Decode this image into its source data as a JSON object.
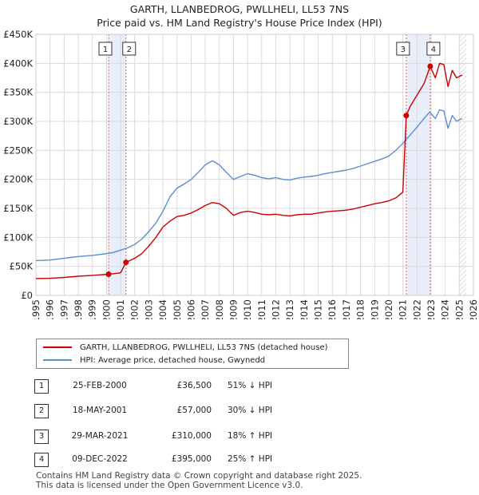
{
  "title_line1": "GARTH, LLANBEDROG, PWLLHELI, LL53 7NS",
  "title_line2": "Price paid vs. HM Land Registry's House Price Index (HPI)",
  "chart_data": {
    "type": "line",
    "title": "GARTH, LLANBEDROG, PWLLHELI, LL53 7NS — Price paid vs. HM Land Registry's House Price Index (HPI)",
    "xlabel": "",
    "ylabel": "",
    "xlim": [
      1995,
      2026
    ],
    "ylim": [
      0,
      450000
    ],
    "x_ticks": [
      "1995",
      "1996",
      "1997",
      "1998",
      "1999",
      "2000",
      "2001",
      "2002",
      "2003",
      "2004",
      "2005",
      "2006",
      "2007",
      "2008",
      "2009",
      "2010",
      "2011",
      "2012",
      "2013",
      "2014",
      "2015",
      "2016",
      "2017",
      "2018",
      "2019",
      "2020",
      "2021",
      "2022",
      "2023",
      "2024",
      "2025",
      "2026"
    ],
    "y_ticks": [
      {
        "value": 0,
        "label": "£0"
      },
      {
        "value": 50000,
        "label": "£50K"
      },
      {
        "value": 100000,
        "label": "£100K"
      },
      {
        "value": 150000,
        "label": "£150K"
      },
      {
        "value": 200000,
        "label": "£200K"
      },
      {
        "value": 250000,
        "label": "£250K"
      },
      {
        "value": 300000,
        "label": "£300K"
      },
      {
        "value": 350000,
        "label": "£350K"
      },
      {
        "value": 400000,
        "label": "£400K"
      },
      {
        "value": 450000,
        "label": "£450K"
      }
    ],
    "grid": true,
    "series": [
      {
        "name": "GARTH, LLANBEDROG, PWLLHELI, LL53 7NS (detached house)",
        "color": "#cc0000",
        "points": [
          [
            1995.0,
            29000
          ],
          [
            1996.0,
            29500
          ],
          [
            1997.0,
            31000
          ],
          [
            1998.0,
            33000
          ],
          [
            1999.0,
            34500
          ],
          [
            2000.15,
            36500
          ],
          [
            2000.5,
            37500
          ],
          [
            2001.0,
            39000
          ],
          [
            2001.38,
            57000
          ],
          [
            2002.0,
            64000
          ],
          [
            2002.5,
            72000
          ],
          [
            2003.0,
            85000
          ],
          [
            2003.5,
            100000
          ],
          [
            2004.0,
            118000
          ],
          [
            2004.5,
            128000
          ],
          [
            2005.0,
            136000
          ],
          [
            2005.5,
            138000
          ],
          [
            2006.0,
            142000
          ],
          [
            2006.5,
            148000
          ],
          [
            2007.0,
            155000
          ],
          [
            2007.5,
            160000
          ],
          [
            2008.0,
            158000
          ],
          [
            2008.5,
            150000
          ],
          [
            2009.0,
            138000
          ],
          [
            2009.5,
            143000
          ],
          [
            2010.0,
            145000
          ],
          [
            2010.5,
            143000
          ],
          [
            2011.0,
            140000
          ],
          [
            2011.5,
            139000
          ],
          [
            2012.0,
            140000
          ],
          [
            2012.5,
            138000
          ],
          [
            2013.0,
            137000
          ],
          [
            2013.5,
            139000
          ],
          [
            2014.0,
            140000
          ],
          [
            2014.5,
            140000
          ],
          [
            2015.0,
            142000
          ],
          [
            2015.5,
            144000
          ],
          [
            2016.0,
            145000
          ],
          [
            2016.5,
            146000
          ],
          [
            2017.0,
            147000
          ],
          [
            2017.5,
            149000
          ],
          [
            2018.0,
            152000
          ],
          [
            2018.5,
            155000
          ],
          [
            2019.0,
            158000
          ],
          [
            2019.5,
            160000
          ],
          [
            2020.0,
            163000
          ],
          [
            2020.5,
            168000
          ],
          [
            2021.0,
            178000
          ],
          [
            2021.24,
            310000
          ],
          [
            2021.5,
            325000
          ],
          [
            2022.0,
            345000
          ],
          [
            2022.5,
            365000
          ],
          [
            2022.94,
            395000
          ],
          [
            2023.3,
            375000
          ],
          [
            2023.6,
            400000
          ],
          [
            2023.9,
            398000
          ],
          [
            2024.2,
            360000
          ],
          [
            2024.5,
            388000
          ],
          [
            2024.8,
            375000
          ],
          [
            2025.2,
            380000
          ]
        ]
      },
      {
        "name": "HPI: Average price, detached house, Gwynedd",
        "color": "#5b8fd0",
        "points": [
          [
            1995.0,
            60000
          ],
          [
            1996.0,
            61000
          ],
          [
            1997.0,
            64000
          ],
          [
            1998.0,
            67000
          ],
          [
            1999.0,
            69000
          ],
          [
            2000.0,
            72000
          ],
          [
            2000.5,
            74000
          ],
          [
            2001.0,
            78000
          ],
          [
            2001.5,
            82000
          ],
          [
            2002.0,
            88000
          ],
          [
            2002.5,
            97000
          ],
          [
            2003.0,
            110000
          ],
          [
            2003.5,
            125000
          ],
          [
            2004.0,
            145000
          ],
          [
            2004.5,
            170000
          ],
          [
            2005.0,
            185000
          ],
          [
            2005.5,
            192000
          ],
          [
            2006.0,
            200000
          ],
          [
            2006.5,
            212000
          ],
          [
            2007.0,
            225000
          ],
          [
            2007.5,
            232000
          ],
          [
            2008.0,
            225000
          ],
          [
            2008.5,
            212000
          ],
          [
            2009.0,
            200000
          ],
          [
            2009.5,
            205000
          ],
          [
            2010.0,
            210000
          ],
          [
            2010.5,
            207000
          ],
          [
            2011.0,
            203000
          ],
          [
            2011.5,
            201000
          ],
          [
            2012.0,
            203000
          ],
          [
            2012.5,
            200000
          ],
          [
            2013.0,
            199000
          ],
          [
            2013.5,
            202000
          ],
          [
            2014.0,
            204000
          ],
          [
            2014.5,
            205000
          ],
          [
            2015.0,
            207000
          ],
          [
            2015.5,
            210000
          ],
          [
            2016.0,
            212000
          ],
          [
            2016.5,
            214000
          ],
          [
            2017.0,
            216000
          ],
          [
            2017.5,
            219000
          ],
          [
            2018.0,
            223000
          ],
          [
            2018.5,
            227000
          ],
          [
            2019.0,
            231000
          ],
          [
            2019.5,
            235000
          ],
          [
            2020.0,
            240000
          ],
          [
            2020.5,
            250000
          ],
          [
            2021.0,
            262000
          ],
          [
            2021.5,
            276000
          ],
          [
            2022.0,
            290000
          ],
          [
            2022.5,
            305000
          ],
          [
            2022.9,
            316000
          ],
          [
            2023.3,
            305000
          ],
          [
            2023.6,
            320000
          ],
          [
            2023.9,
            318000
          ],
          [
            2024.2,
            288000
          ],
          [
            2024.5,
            310000
          ],
          [
            2024.8,
            300000
          ],
          [
            2025.2,
            305000
          ]
        ]
      }
    ],
    "sales": [
      {
        "id": "1",
        "x": 2000.15,
        "price": 36500
      },
      {
        "id": "2",
        "x": 2001.38,
        "price": 57000
      },
      {
        "id": "3",
        "x": 2021.24,
        "price": 310000
      },
      {
        "id": "4",
        "x": 2022.94,
        "price": 395000
      }
    ],
    "shaded_ranges": [
      [
        2000.15,
        2001.38
      ],
      [
        2021.24,
        2022.94
      ]
    ],
    "forecast_start": 2025.0
  },
  "legend": {
    "red_label": "GARTH, LLANBEDROG, PWLLHELI, LL53 7NS (detached house)",
    "blue_label": "HPI: Average price, detached house, Gwynedd",
    "red_color": "#cc0000",
    "blue_color": "#5b8fd0"
  },
  "transactions": [
    {
      "id": "1",
      "date": "25-FEB-2000",
      "price": "£36,500",
      "hpi": "51% ↓ HPI"
    },
    {
      "id": "2",
      "date": "18-MAY-2001",
      "price": "£57,000",
      "hpi": "30% ↓ HPI"
    },
    {
      "id": "3",
      "date": "29-MAR-2021",
      "price": "£310,000",
      "hpi": "18% ↑ HPI"
    },
    {
      "id": "4",
      "date": "09-DEC-2022",
      "price": "£395,000",
      "hpi": "25% ↑ HPI"
    }
  ],
  "footer_line1": "Contains HM Land Registry data © Crown copyright and database right 2025.",
  "footer_line2": "This data is licensed under the Open Government Licence v3.0."
}
